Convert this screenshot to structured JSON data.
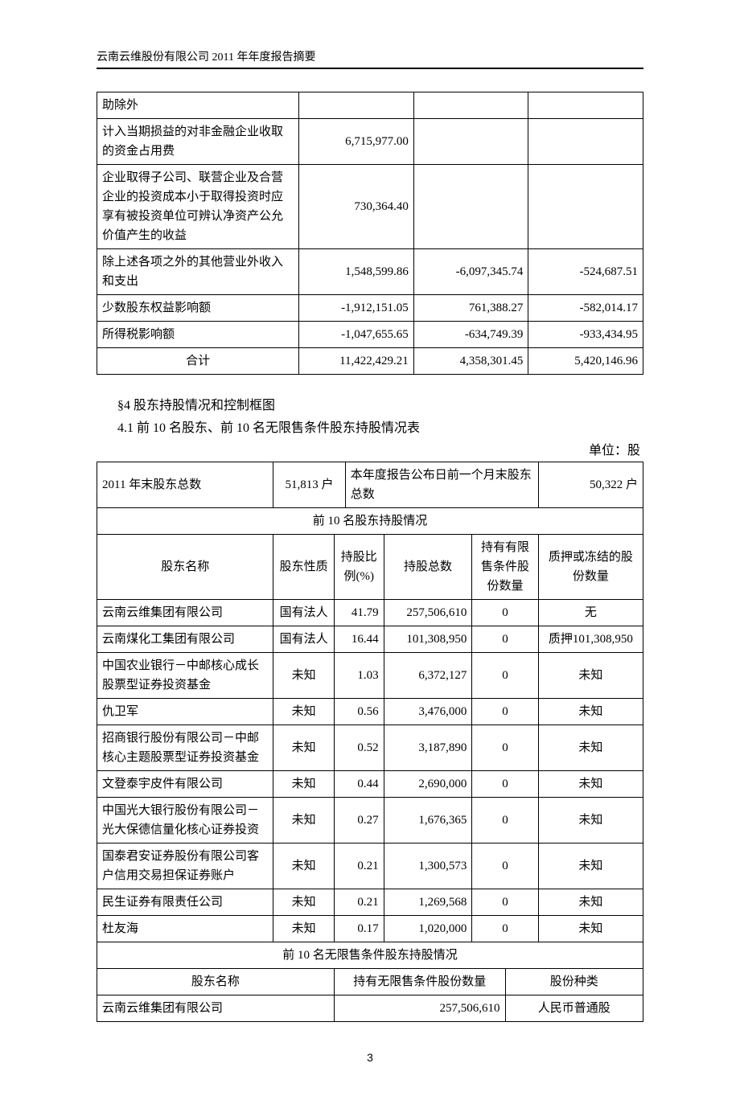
{
  "header": "云南云维股份有限公司 2011 年年度报告摘要",
  "page_number": "3",
  "table1": {
    "rows": [
      {
        "label": "助除外",
        "v1": "",
        "v2": "",
        "v3": ""
      },
      {
        "label": "计入当期损益的对非金融企业收取的资金占用费",
        "v1": "6,715,977.00",
        "v2": "",
        "v3": ""
      },
      {
        "label": "企业取得子公司、联营企业及合营企业的投资成本小于取得投资时应享有被投资单位可辨认净资产公允价值产生的收益",
        "v1": "730,364.40",
        "v2": "",
        "v3": ""
      },
      {
        "label": "除上述各项之外的其他营业外收入和支出",
        "v1": "1,548,599.86",
        "v2": "-6,097,345.74",
        "v3": "-524,687.51"
      },
      {
        "label": "少数股东权益影响额",
        "v1": "-1,912,151.05",
        "v2": "761,388.27",
        "v3": "-582,014.17"
      },
      {
        "label": "所得税影响额",
        "v1": "-1,047,655.65",
        "v2": "-634,749.39",
        "v3": "-933,434.95"
      }
    ],
    "total": {
      "label": "合计",
      "v1": "11,422,429.21",
      "v2": "4,358,301.45",
      "v3": "5,420,146.96"
    }
  },
  "section4_title": "§4 股东持股情况和控制框图",
  "section41_title": "4.1 前 10 名股东、前 10 名无限售条件股东持股情况表",
  "unit_label": "单位：股",
  "sh_table": {
    "top_row": {
      "l1": "2011 年末股东总数",
      "v1": "51,813 户",
      "l2": "本年度报告公布日前一个月末股东总数",
      "v2": "50,322 户"
    },
    "header1": "前 10 名股东持股情况",
    "cols": {
      "name": "股东名称",
      "nature": "股东性质",
      "pct": "持股比例(%)",
      "total": "持股总数",
      "limited": "持有有限售条件股份数量",
      "pledge": "质押或冻结的股份数量"
    },
    "rows": [
      {
        "name": "云南云维集团有限公司",
        "nature": "国有法人",
        "pct": "41.79",
        "total": "257,506,610",
        "limited": "0",
        "pledge": "无"
      },
      {
        "name": "云南煤化工集团有限公司",
        "nature": "国有法人",
        "pct": "16.44",
        "total": "101,308,950",
        "limited": "0",
        "pledge": "质押101,308,950"
      },
      {
        "name": "中国农业银行－中邮核心成长股票型证券投资基金",
        "nature": "未知",
        "pct": "1.03",
        "total": "6,372,127",
        "limited": "0",
        "pledge": "未知"
      },
      {
        "name": "仇卫军",
        "nature": "未知",
        "pct": "0.56",
        "total": "3,476,000",
        "limited": "0",
        "pledge": "未知"
      },
      {
        "name": "招商银行股份有限公司－中邮核心主题股票型证券投资基金",
        "nature": "未知",
        "pct": "0.52",
        "total": "3,187,890",
        "limited": "0",
        "pledge": "未知"
      },
      {
        "name": "文登泰宇皮件有限公司",
        "nature": "未知",
        "pct": "0.44",
        "total": "2,690,000",
        "limited": "0",
        "pledge": "未知"
      },
      {
        "name": "中国光大银行股份有限公司－光大保德信量化核心证券投资",
        "nature": "未知",
        "pct": "0.27",
        "total": "1,676,365",
        "limited": "0",
        "pledge": "未知"
      },
      {
        "name": "国泰君安证券股份有限公司客户信用交易担保证券账户",
        "nature": "未知",
        "pct": "0.21",
        "total": "1,300,573",
        "limited": "0",
        "pledge": "未知"
      },
      {
        "name": "民生证券有限责任公司",
        "nature": "未知",
        "pct": "0.21",
        "total": "1,269,568",
        "limited": "0",
        "pledge": "未知"
      },
      {
        "name": "杜友海",
        "nature": "未知",
        "pct": "0.17",
        "total": "1,020,000",
        "limited": "0",
        "pledge": "未知"
      }
    ],
    "header2": "前 10 名无限售条件股东持股情况",
    "cols2": {
      "name": "股东名称",
      "qty": "持有无限售条件股份数量",
      "type": "股份种类"
    },
    "row2": {
      "name": "云南云维集团有限公司",
      "qty": "257,506,610",
      "type": "人民币普通股"
    }
  }
}
